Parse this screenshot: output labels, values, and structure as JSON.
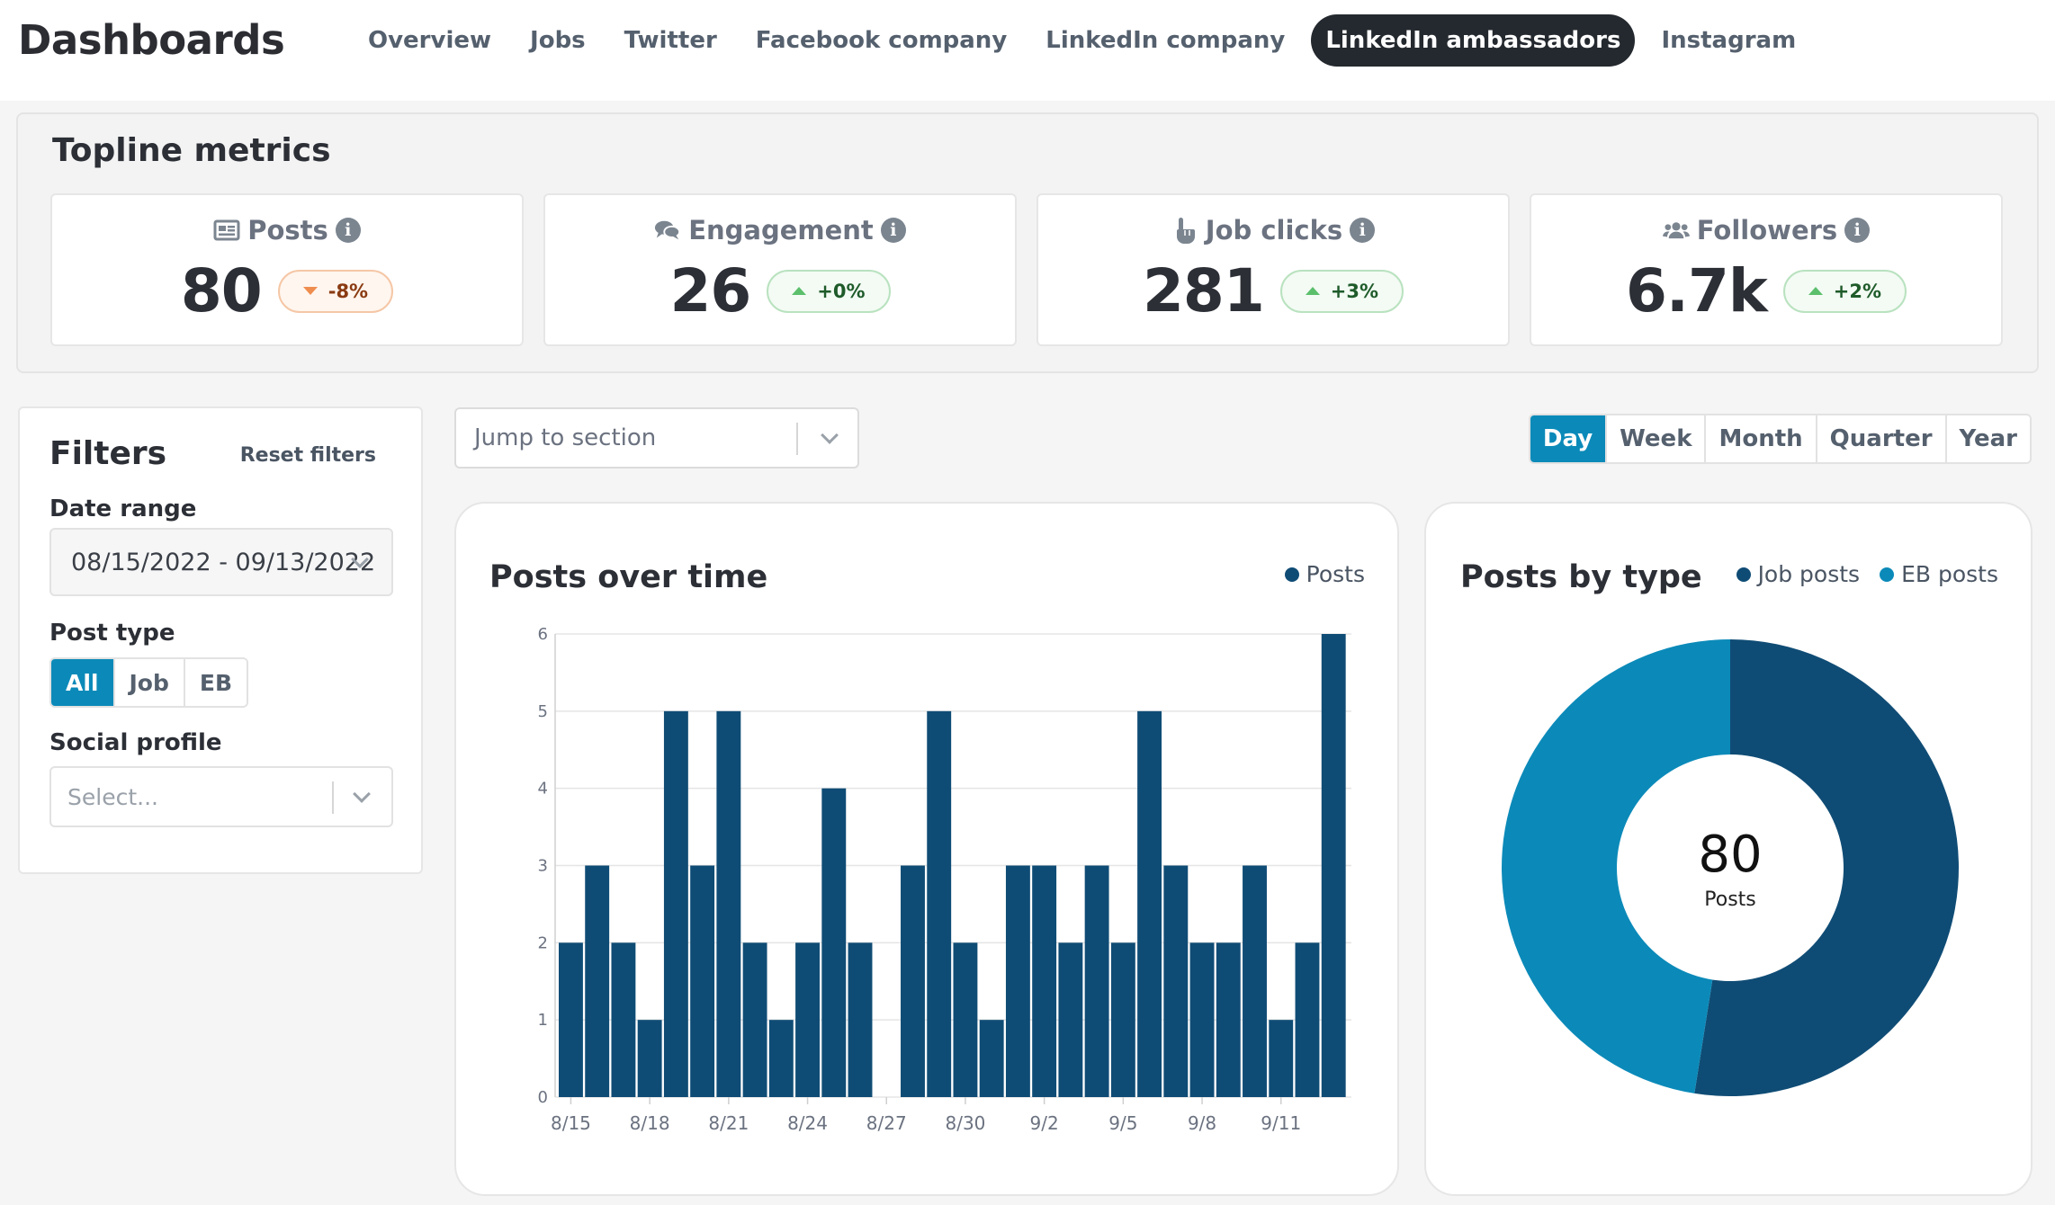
{
  "app": {
    "title": "Dashboards"
  },
  "nav": [
    {
      "label": "Overview",
      "active": false
    },
    {
      "label": "Jobs",
      "active": false
    },
    {
      "label": "Twitter",
      "active": false
    },
    {
      "label": "Facebook company",
      "active": false
    },
    {
      "label": "LinkedIn company",
      "active": false
    },
    {
      "label": "LinkedIn ambassadors",
      "active": true
    },
    {
      "label": "Instagram",
      "active": false
    }
  ],
  "topline": {
    "title": "Topline metrics",
    "metrics": [
      {
        "label": "Posts",
        "icon": "newspaper-icon",
        "value": "80",
        "change": "-8%",
        "direction": "down"
      },
      {
        "label": "Engagement",
        "icon": "comments-icon",
        "value": "26",
        "change": "+0%",
        "direction": "up"
      },
      {
        "label": "Job clicks",
        "icon": "pointer-hand-icon",
        "value": "281",
        "change": "+3%",
        "direction": "up"
      },
      {
        "label": "Followers",
        "icon": "users-icon",
        "value": "6.7k",
        "change": "+2%",
        "direction": "up"
      }
    ]
  },
  "filters": {
    "title": "Filters",
    "reset_label": "Reset filters",
    "date_range_label": "Date range",
    "date_range_value": "08/15/2022 - 09/13/2022",
    "post_type_label": "Post type",
    "post_types": [
      "All",
      "Job",
      "EB"
    ],
    "post_type_selected": "All",
    "social_profile_label": "Social profile",
    "social_profile_placeholder": "Select..."
  },
  "jump": {
    "placeholder": "Jump to section"
  },
  "periods": {
    "options": [
      "Day",
      "Week",
      "Month",
      "Quarter",
      "Year"
    ],
    "selected": "Day"
  },
  "colors": {
    "accent": "#0b8ab9",
    "navy": "#0f4c75",
    "teal": "#0b8ab9"
  },
  "chart_data": [
    {
      "type": "bar",
      "title": "Posts over time",
      "legend": [
        "Posts"
      ],
      "ylim": [
        0,
        6
      ],
      "yticks": [
        0,
        1,
        2,
        3,
        4,
        5,
        6
      ],
      "xtick_labels": [
        "8/15",
        "8/18",
        "8/21",
        "8/24",
        "8/27",
        "8/30",
        "9/2",
        "9/5",
        "9/8",
        "9/11"
      ],
      "series": [
        {
          "name": "Posts",
          "color": "#0f4c75",
          "x": [
            "8/15",
            "8/16",
            "8/17",
            "8/18",
            "8/19",
            "8/20",
            "8/21",
            "8/22",
            "8/23",
            "8/24",
            "8/25",
            "8/26",
            "8/27",
            "8/28",
            "8/29",
            "8/30",
            "8/31",
            "9/1",
            "9/2",
            "9/3",
            "9/4",
            "9/5",
            "9/6",
            "9/7",
            "9/8",
            "9/9",
            "9/10",
            "9/11",
            "9/12",
            "9/13"
          ],
          "values": [
            2,
            3,
            2,
            1,
            5,
            3,
            5,
            2,
            1,
            2,
            4,
            2,
            0,
            3,
            5,
            2,
            1,
            3,
            3,
            2,
            3,
            2,
            5,
            3,
            2,
            2,
            3,
            1,
            2,
            6
          ]
        }
      ]
    },
    {
      "type": "pie",
      "title": "Posts by type",
      "legend": [
        "Job posts",
        "EB posts"
      ],
      "center_value": "80",
      "center_label": "Posts",
      "series": [
        {
          "name": "Job posts",
          "value": 42,
          "color": "#0f4c75"
        },
        {
          "name": "EB posts",
          "value": 38,
          "color": "#0b8ab9"
        }
      ]
    }
  ]
}
